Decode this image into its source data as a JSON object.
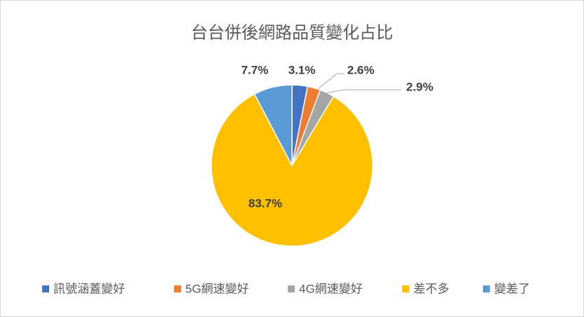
{
  "chart_data": {
    "type": "pie",
    "title": "台台併後網路品質變化占比",
    "categories": [
      "訊號涵蓋變好",
      "5G網速變好",
      "4G網速變好",
      "差不多",
      "變差了"
    ],
    "values": [
      3.1,
      2.6,
      2.9,
      83.7,
      7.7
    ],
    "value_labels": [
      "3.1%",
      "2.6%",
      "2.9%",
      "83.7%",
      "7.7%"
    ],
    "colors": [
      "#4472c4",
      "#ed7d31",
      "#a5a5a5",
      "#ffc000",
      "#5b9bd5"
    ],
    "legend": "bottom"
  }
}
